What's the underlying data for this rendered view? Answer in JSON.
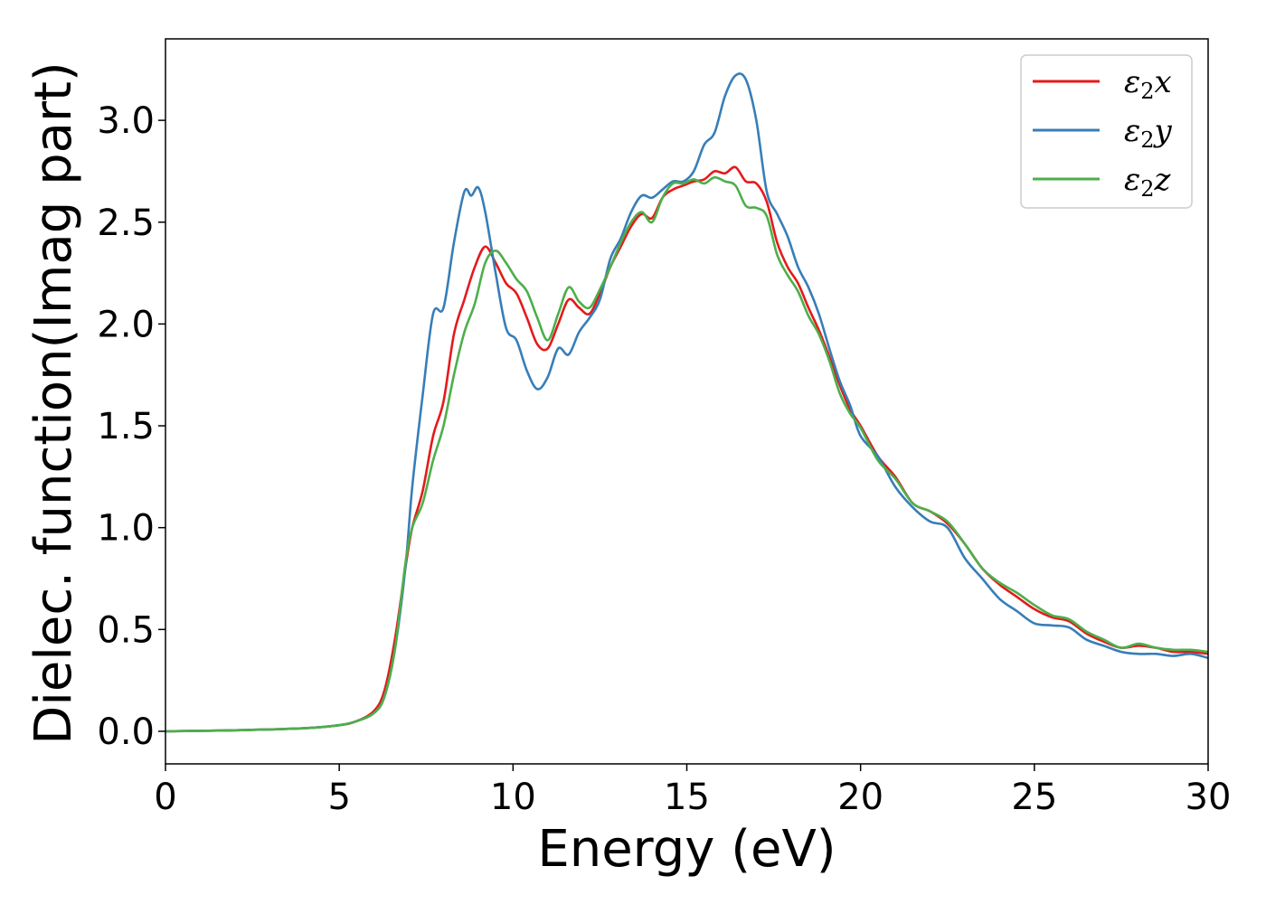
{
  "chart_data": {
    "type": "line",
    "xlabel": "Energy (eV)",
    "ylabel": "Dielec. function(Imag part)",
    "xlim": [
      0,
      30
    ],
    "ylim": [
      -0.16,
      3.4
    ],
    "xticks": [
      "0",
      "5",
      "10",
      "15",
      "20",
      "25",
      "30"
    ],
    "yticks": [
      "0.0",
      "0.5",
      "1.0",
      "1.5",
      "2.0",
      "2.5",
      "3.0"
    ],
    "grid": false,
    "legend_position": "top-right",
    "series": [
      {
        "name": "ε₂x",
        "legend": {
          "main": "ε",
          "sub": "2",
          "suffix": "x"
        },
        "color": "#e41a1c",
        "x": [
          0,
          2,
          4,
          5,
          5.5,
          6,
          6.3,
          6.6,
          6.9,
          7.1,
          7.4,
          7.7,
          8.0,
          8.3,
          8.6,
          8.9,
          9.2,
          9.5,
          9.8,
          10.1,
          10.4,
          10.7,
          11.0,
          11.3,
          11.6,
          11.9,
          12.2,
          12.5,
          12.8,
          13.1,
          13.4,
          13.7,
          14.0,
          14.3,
          14.6,
          14.9,
          15.2,
          15.5,
          15.8,
          16.1,
          16.4,
          16.7,
          17.0,
          17.3,
          17.6,
          17.9,
          18.2,
          18.5,
          18.8,
          19.1,
          19.4,
          19.7,
          20.0,
          20.5,
          21.0,
          21.5,
          22.0,
          22.5,
          23.0,
          23.5,
          24.0,
          24.5,
          25.0,
          25.5,
          26.0,
          26.5,
          27.0,
          27.5,
          28.0,
          28.5,
          29.0,
          29.5,
          30.0
        ],
        "y": [
          0,
          0.005,
          0.015,
          0.03,
          0.05,
          0.1,
          0.2,
          0.45,
          0.8,
          1.0,
          1.18,
          1.45,
          1.62,
          1.95,
          2.12,
          2.28,
          2.38,
          2.3,
          2.2,
          2.15,
          2.03,
          1.9,
          1.88,
          2.0,
          2.12,
          2.08,
          2.05,
          2.15,
          2.28,
          2.38,
          2.48,
          2.54,
          2.52,
          2.62,
          2.66,
          2.68,
          2.7,
          2.71,
          2.75,
          2.74,
          2.77,
          2.7,
          2.69,
          2.6,
          2.4,
          2.28,
          2.2,
          2.08,
          1.97,
          1.84,
          1.7,
          1.58,
          1.5,
          1.35,
          1.25,
          1.12,
          1.08,
          1.02,
          0.92,
          0.8,
          0.72,
          0.66,
          0.6,
          0.56,
          0.54,
          0.48,
          0.44,
          0.41,
          0.42,
          0.41,
          0.39,
          0.39,
          0.38
        ]
      },
      {
        "name": "ε₂y",
        "legend": {
          "main": "ε",
          "sub": "2",
          "suffix": "y"
        },
        "color": "#377eb8",
        "x": [
          0,
          2,
          4,
          5,
          5.5,
          6,
          6.3,
          6.6,
          6.9,
          7.1,
          7.4,
          7.7,
          8.0,
          8.3,
          8.6,
          8.8,
          9.0,
          9.2,
          9.5,
          9.8,
          10.1,
          10.4,
          10.7,
          11.0,
          11.3,
          11.6,
          11.9,
          12.2,
          12.5,
          12.8,
          13.1,
          13.4,
          13.7,
          14.0,
          14.3,
          14.6,
          14.9,
          15.2,
          15.5,
          15.8,
          16.1,
          16.4,
          16.7,
          17.0,
          17.3,
          17.6,
          17.9,
          18.2,
          18.5,
          18.8,
          19.1,
          19.4,
          19.7,
          20.0,
          20.5,
          21.0,
          21.5,
          22.0,
          22.5,
          23.0,
          23.5,
          24.0,
          24.5,
          25.0,
          25.5,
          26.0,
          26.5,
          27.0,
          27.5,
          28.0,
          28.5,
          29.0,
          29.5,
          30.0
        ],
        "y": [
          0,
          0.005,
          0.015,
          0.03,
          0.05,
          0.09,
          0.17,
          0.4,
          0.8,
          1.2,
          1.65,
          2.05,
          2.08,
          2.4,
          2.65,
          2.63,
          2.67,
          2.55,
          2.25,
          1.98,
          1.92,
          1.77,
          1.68,
          1.74,
          1.88,
          1.85,
          1.96,
          2.03,
          2.12,
          2.32,
          2.42,
          2.55,
          2.63,
          2.62,
          2.66,
          2.7,
          2.7,
          2.75,
          2.88,
          2.94,
          3.12,
          3.22,
          3.2,
          3.0,
          2.65,
          2.54,
          2.43,
          2.28,
          2.18,
          2.05,
          1.88,
          1.72,
          1.6,
          1.45,
          1.35,
          1.2,
          1.1,
          1.03,
          1.0,
          0.85,
          0.75,
          0.65,
          0.59,
          0.53,
          0.52,
          0.51,
          0.45,
          0.42,
          0.39,
          0.38,
          0.38,
          0.37,
          0.38,
          0.36
        ]
      },
      {
        "name": "ε₂z",
        "legend": {
          "main": "ε",
          "sub": "2",
          "suffix": "z"
        },
        "color": "#4daf4a",
        "x": [
          0,
          2,
          4,
          5,
          5.5,
          6,
          6.3,
          6.6,
          6.9,
          7.1,
          7.4,
          7.7,
          8.0,
          8.3,
          8.6,
          8.9,
          9.2,
          9.5,
          9.8,
          10.1,
          10.4,
          10.7,
          11.0,
          11.3,
          11.6,
          11.9,
          12.2,
          12.5,
          12.8,
          13.1,
          13.4,
          13.7,
          14.0,
          14.3,
          14.6,
          14.9,
          15.2,
          15.5,
          15.8,
          16.1,
          16.4,
          16.7,
          17.0,
          17.3,
          17.6,
          17.9,
          18.2,
          18.5,
          18.8,
          19.1,
          19.4,
          19.7,
          20.0,
          20.5,
          21.0,
          21.5,
          22.0,
          22.5,
          23.0,
          23.5,
          24.0,
          24.5,
          25.0,
          25.5,
          26.0,
          26.5,
          27.0,
          27.5,
          28.0,
          28.5,
          29.0,
          29.5,
          30.0
        ],
        "y": [
          0,
          0.005,
          0.015,
          0.03,
          0.05,
          0.09,
          0.17,
          0.4,
          0.82,
          1.0,
          1.12,
          1.33,
          1.5,
          1.75,
          1.96,
          2.1,
          2.3,
          2.36,
          2.3,
          2.22,
          2.16,
          2.03,
          1.92,
          2.05,
          2.18,
          2.11,
          2.08,
          2.17,
          2.28,
          2.4,
          2.5,
          2.55,
          2.5,
          2.62,
          2.69,
          2.69,
          2.71,
          2.69,
          2.72,
          2.7,
          2.68,
          2.58,
          2.57,
          2.53,
          2.34,
          2.24,
          2.16,
          2.04,
          1.95,
          1.82,
          1.66,
          1.56,
          1.49,
          1.33,
          1.24,
          1.12,
          1.08,
          1.03,
          0.92,
          0.8,
          0.73,
          0.68,
          0.62,
          0.57,
          0.55,
          0.49,
          0.45,
          0.41,
          0.43,
          0.41,
          0.4,
          0.4,
          0.39
        ]
      }
    ]
  }
}
